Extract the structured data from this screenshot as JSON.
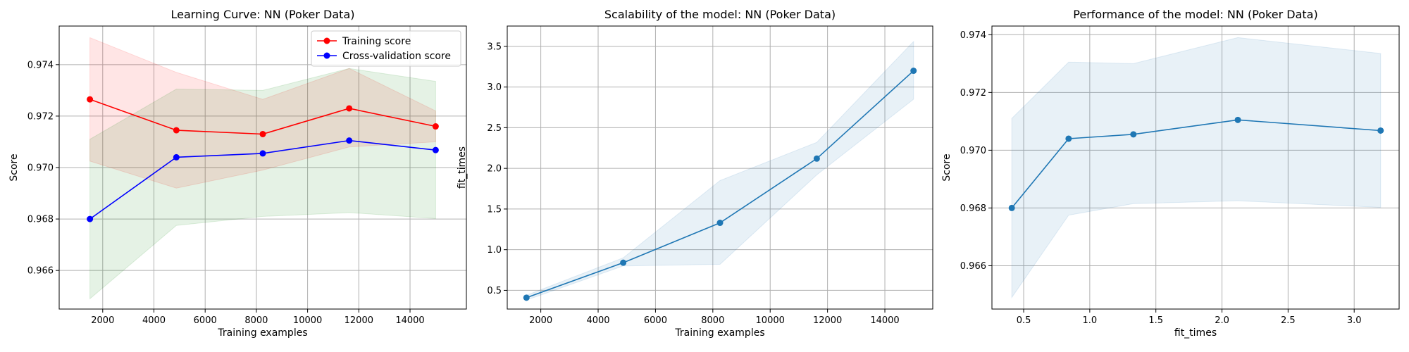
{
  "chart_data": [
    {
      "type": "line",
      "title": "Learning Curve: NN (Poker Data)",
      "xlabel": "Training examples",
      "ylabel": "Score",
      "xlim": [
        300,
        16200
      ],
      "ylim": [
        0.9645,
        0.9755
      ],
      "xticks": [
        2000,
        4000,
        6000,
        8000,
        10000,
        12000,
        14000
      ],
      "xtick_labels": [
        "2000",
        "4000",
        "6000",
        "8000",
        "10000",
        "12000",
        "14000"
      ],
      "yticks": [
        0.966,
        0.968,
        0.97,
        0.972,
        0.974
      ],
      "ytick_labels": [
        "0.966",
        "0.968",
        "0.970",
        "0.972",
        "0.974"
      ],
      "grid": true,
      "legend": "upper right",
      "x": [
        1500,
        4875,
        8250,
        11625,
        15000
      ],
      "series": [
        {
          "name": "Training score",
          "color": "#ff0000",
          "values": [
            0.97265,
            0.97145,
            0.9713,
            0.9723,
            0.9716
          ],
          "band_lower": [
            0.97025,
            0.9692,
            0.9699,
            0.9708,
            0.971
          ],
          "band_upper": [
            0.97505,
            0.9737,
            0.97265,
            0.97385,
            0.9722
          ],
          "band_color": "#ff0000"
        },
        {
          "name": "Cross-validation score",
          "color": "#0000ff",
          "values": [
            0.968,
            0.9704,
            0.97055,
            0.97105,
            0.97068
          ],
          "band_lower": [
            0.9649,
            0.96775,
            0.9681,
            0.96825,
            0.96802
          ],
          "band_upper": [
            0.9711,
            0.97305,
            0.973,
            0.97385,
            0.97335
          ],
          "band_color": "#008000"
        }
      ]
    },
    {
      "type": "line",
      "title": "Scalability of the model: NN (Poker Data)",
      "xlabel": "Training examples",
      "ylabel": "fit_times",
      "xlim": [
        830,
        15670
      ],
      "ylim": [
        0.27,
        3.75
      ],
      "xticks": [
        2000,
        4000,
        6000,
        8000,
        10000,
        12000,
        14000
      ],
      "xtick_labels": [
        "2000",
        "4000",
        "6000",
        "8000",
        "10000",
        "12000",
        "14000"
      ],
      "yticks": [
        0.5,
        1.0,
        1.5,
        2.0,
        2.5,
        3.0,
        3.5
      ],
      "ytick_labels": [
        "0.5",
        "1.0",
        "1.5",
        "2.0",
        "2.5",
        "3.0",
        "3.5"
      ],
      "grid": true,
      "x": [
        1500,
        4875,
        8250,
        11625,
        15000
      ],
      "series": [
        {
          "color": "#1f77b4",
          "values": [
            0.41,
            0.84,
            1.33,
            2.12,
            3.2
          ],
          "band_lower": [
            0.38,
            0.8,
            0.82,
            1.92,
            2.85
          ],
          "band_upper": [
            0.44,
            0.9,
            1.85,
            2.32,
            3.56
          ],
          "band_color": "#1f77b4"
        }
      ]
    },
    {
      "type": "line",
      "title": "Performance of the model: NN (Poker Data)",
      "xlabel": "fit_times",
      "ylabel": "Score",
      "xlim": [
        0.26,
        3.34
      ],
      "ylim": [
        0.9645,
        0.9743
      ],
      "xticks": [
        0.5,
        1.0,
        1.5,
        2.0,
        2.5,
        3.0
      ],
      "xtick_labels": [
        "0.5",
        "1.0",
        "1.5",
        "2.0",
        "2.5",
        "3.0"
      ],
      "yticks": [
        0.966,
        0.968,
        0.97,
        0.972,
        0.974
      ],
      "ytick_labels": [
        "0.966",
        "0.968",
        "0.970",
        "0.972",
        "0.974"
      ],
      "grid": true,
      "x": [
        0.41,
        0.84,
        1.33,
        2.12,
        3.2
      ],
      "series": [
        {
          "color": "#1f77b4",
          "values": [
            0.968,
            0.9704,
            0.97055,
            0.97105,
            0.97068
          ],
          "band_lower": [
            0.9649,
            0.96775,
            0.96815,
            0.96825,
            0.96802
          ],
          "band_upper": [
            0.9711,
            0.97305,
            0.973,
            0.9739,
            0.97335
          ],
          "band_color": "#1f77b4"
        }
      ]
    }
  ]
}
